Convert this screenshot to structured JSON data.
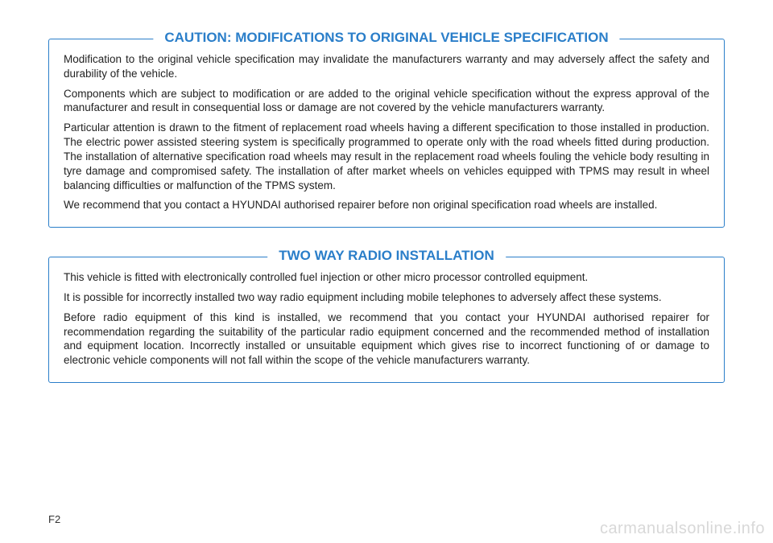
{
  "box1": {
    "title": "CAUTION: MODIFICATIONS TO ORIGINAL VEHICLE SPECIFICATION",
    "border_color": "#2a7ec9",
    "title_color": "#2a7ec9",
    "paragraphs": [
      "Modification to the original vehicle specification may invalidate the manufacturers warranty and may adversely affect the safety and durability of the vehicle.",
      "Components which are subject to modification or are added to the original vehicle specification without the express approval of the manufacturer and result in consequential loss or damage are not covered by the vehicle manufacturers warranty.",
      "Particular attention is drawn to the fitment of replacement road wheels having a different specification to those installed in production. The electric power assisted steering system is specifically programmed to operate only with the road wheels fitted during production. The installation of alternative specification road wheels may result in the replacement road wheels fouling the vehicle body resulting in tyre damage and compromised safety. The installation of after market wheels on vehicles equipped with TPMS may result in wheel balancing difficulties or malfunction of the TPMS system.",
      "We recommend that you contact a HYUNDAI authorised repairer before non original specification road wheels are installed."
    ]
  },
  "box2": {
    "title": "TWO WAY RADIO INSTALLATION",
    "border_color": "#2a7ec9",
    "title_color": "#2a7ec9",
    "paragraphs": [
      "This vehicle is fitted with electronically controlled fuel injection or other micro processor controlled equipment.",
      "It is possible for incorrectly installed two way radio equipment including mobile telephones to adversely affect these systems.",
      "Before radio equipment of this kind is installed, we recommend that you contact your HYUNDAI authorised repairer for recommendation regarding the suitability of the particular radio equipment concerned and the recommended method of installation and equipment location. Incorrectly installed or unsuitable equipment which gives rise to incorrect functioning of or damage to electronic vehicle components will not fall within the scope of the vehicle manufacturers warranty."
    ]
  },
  "page_number": "F2",
  "watermark": "carmanualsonline.info"
}
